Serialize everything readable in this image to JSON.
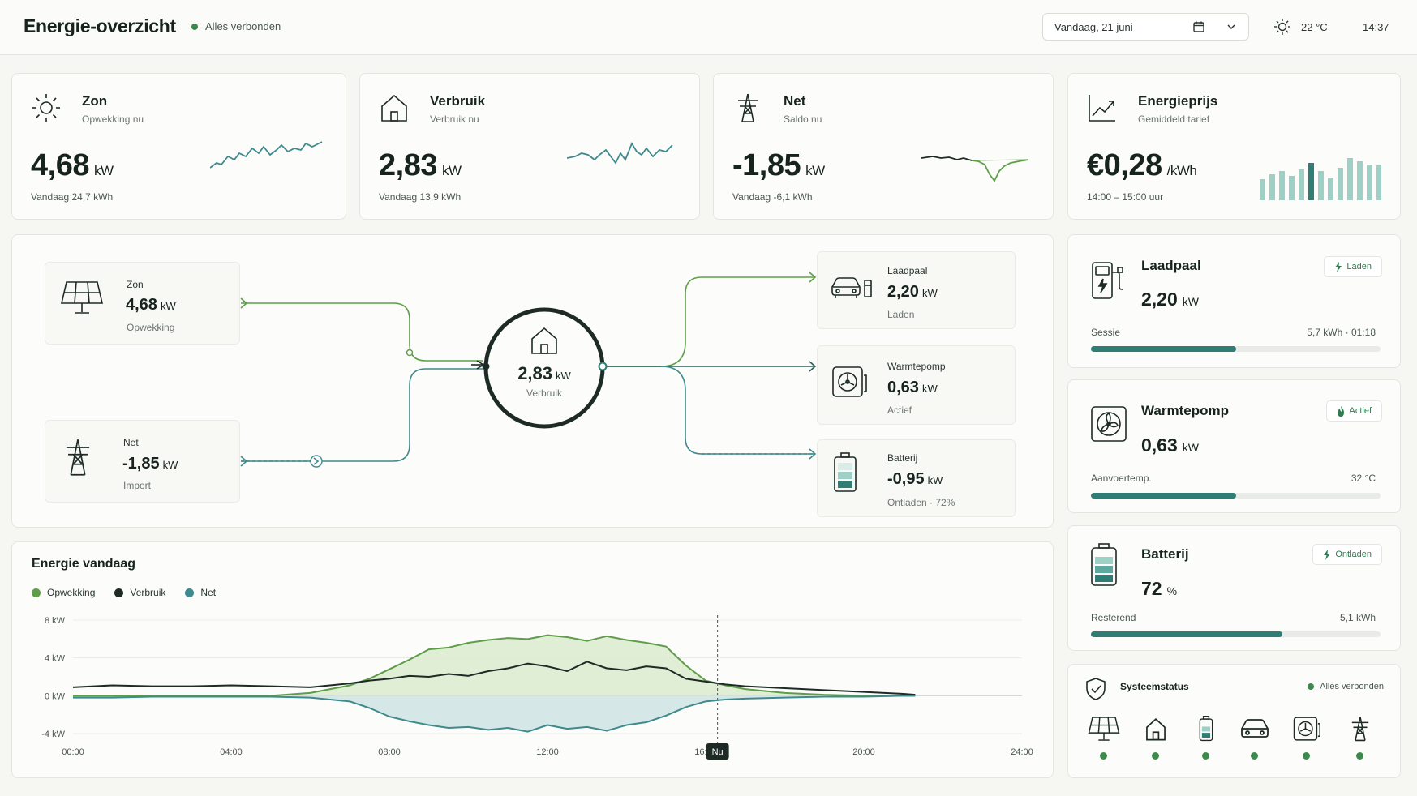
{
  "header": {
    "title": "Energie-overzicht",
    "connection_status": "Alles verbonden",
    "date_label": "Vandaag, 21 juni",
    "temperature": "22 °C",
    "time": "14:37"
  },
  "kpis": {
    "zon": {
      "title": "Zon",
      "subtitle": "Opwekking nu",
      "value": "4,68",
      "unit": "kW",
      "footer": "Vandaag 24,7 kWh",
      "icon": "sun-icon"
    },
    "verbruik": {
      "title": "Verbruik",
      "subtitle": "Verbruik nu",
      "value": "2,83",
      "unit": "kW",
      "footer": "Vandaag 13,9 kWh",
      "icon": "house-icon"
    },
    "net": {
      "title": "Net",
      "subtitle": "Saldo nu",
      "value": "-1,85",
      "unit": "kW",
      "footer": "Vandaag -6,1 kWh",
      "icon": "pylon-icon"
    },
    "prijs": {
      "title": "Energieprijs",
      "subtitle": "Gemiddeld tarief",
      "value": "€0,28",
      "unit": "/kWh",
      "footer": "14:00 – 15:00 uur",
      "icon": "trend-icon"
    }
  },
  "flow": {
    "zon": {
      "label": "Zon",
      "value": "4,68",
      "unit": "kW",
      "sub": "Opwekking"
    },
    "net": {
      "label": "Net",
      "value": "-1,85",
      "unit": "kW",
      "sub": "Import"
    },
    "center": {
      "value": "2,83",
      "unit": "kW",
      "sub": "Verbruik"
    },
    "laadpaal": {
      "label": "Laadpaal",
      "value": "2,20",
      "unit": "kW",
      "sub": "Laden"
    },
    "warmtepomp": {
      "label": "Warmtepomp",
      "value": "0,63",
      "unit": "kW",
      "sub": "Actief"
    },
    "batterij": {
      "label": "Batterij",
      "value": "-0,95",
      "unit": "kW",
      "sub": "Ontladen · 72%"
    }
  },
  "devices": {
    "laadpaal": {
      "title": "Laadpaal",
      "value": "2,20",
      "unit": "kW",
      "badge": "Laden",
      "row_label": "Sessie",
      "row_value": "5,7 kWh · 01:18",
      "progress": 0.5
    },
    "warmtepomp": {
      "title": "Warmtepomp",
      "value": "0,63",
      "unit": "kW",
      "badge": "Actief",
      "row_label": "Aanvoertemp.",
      "row_value": "32 °C",
      "progress": 0.5
    },
    "batterij": {
      "title": "Batterij",
      "value": "72",
      "unit": "%",
      "badge": "Ontladen",
      "row_label": "Resterend",
      "row_value": "5,1 kWh",
      "progress": 0.66
    }
  },
  "system": {
    "title": "Systeemstatus",
    "status": "Alles verbonden",
    "items": [
      "solar-panel-icon",
      "house-icon",
      "battery-icon",
      "car-icon",
      "heatpump-icon",
      "pylon-icon"
    ]
  },
  "colors": {
    "opwekking": "#5e9e48",
    "verbruik": "#1d2a26",
    "net": "#3f8a8c",
    "accent": "#2f7d74"
  },
  "chart_data": {
    "type": "area",
    "title": "Energie vandaag",
    "x_ticks": [
      "00:00",
      "04:00",
      "08:00",
      "12:00",
      "16:00",
      "20:00",
      "24:00"
    ],
    "y_ticks": [
      "8 kW",
      "4 kW",
      "0 kW",
      "-4 kW"
    ],
    "ylim": [
      -4,
      8
    ],
    "xlim": [
      0,
      24
    ],
    "now_label": "Nu",
    "now_x": 16.3,
    "legend_position": "top-left",
    "grid": true,
    "x": [
      0,
      1,
      2,
      3,
      4,
      5,
      6,
      7,
      7.5,
      8,
      8.5,
      9,
      9.5,
      10,
      10.5,
      11,
      11.5,
      12,
      12.5,
      13,
      13.5,
      14,
      14.5,
      15,
      15.5,
      16,
      16.5,
      17,
      18,
      19,
      20,
      21,
      21.3
    ],
    "series": [
      {
        "name": "Opwekking",
        "values": [
          0,
          0,
          0,
          0,
          0,
          0,
          0.3,
          1.1,
          1.8,
          2.8,
          3.8,
          4.9,
          5.1,
          5.6,
          5.9,
          6.1,
          6.0,
          6.4,
          6.2,
          5.8,
          6.3,
          5.9,
          5.6,
          5.2,
          3.2,
          1.6,
          1.1,
          0.7,
          0.3,
          0.1,
          0,
          0,
          0
        ]
      },
      {
        "name": "Verbruik",
        "values": [
          0.9,
          1.1,
          1.0,
          1.0,
          1.1,
          1.0,
          0.9,
          1.3,
          1.6,
          1.8,
          2.1,
          2.0,
          2.3,
          2.1,
          2.6,
          2.9,
          3.4,
          3.1,
          2.6,
          3.6,
          2.9,
          2.7,
          3.1,
          2.9,
          1.8,
          1.5,
          1.2,
          1.0,
          0.8,
          0.6,
          0.4,
          0.2,
          0.1
        ]
      },
      {
        "name": "Net",
        "values": [
          -0.2,
          -0.2,
          -0.1,
          -0.1,
          -0.1,
          -0.1,
          -0.2,
          -0.6,
          -1.3,
          -2.2,
          -2.7,
          -3.1,
          -3.4,
          -3.3,
          -3.6,
          -3.4,
          -3.8,
          -3.1,
          -3.5,
          -3.3,
          -3.7,
          -3.1,
          -2.8,
          -2.1,
          -1.2,
          -0.6,
          -0.4,
          -0.3,
          -0.2,
          -0.1,
          -0.1,
          0,
          0
        ]
      }
    ]
  }
}
